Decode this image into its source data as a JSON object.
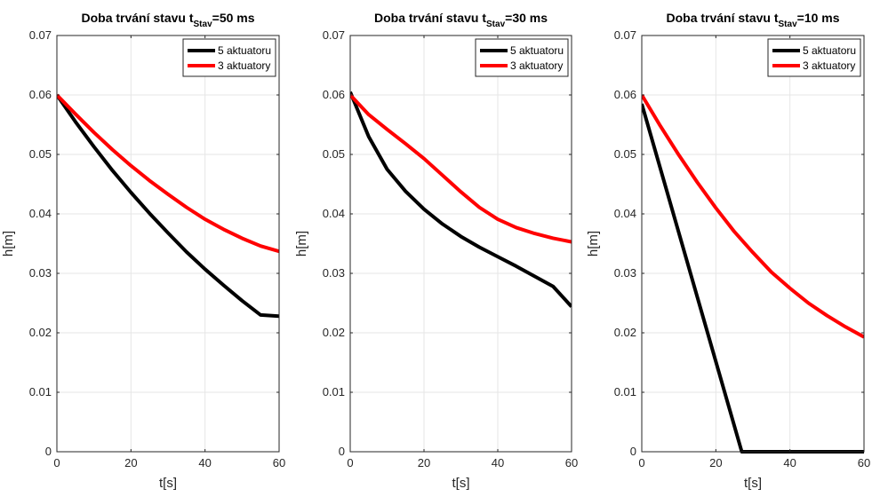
{
  "chart_data": [
    {
      "type": "line",
      "title": {
        "prefix": "Doba trvání stavu t",
        "subscript": "Stav",
        "suffix": "=50 ms"
      },
      "xlabel": "t[s]",
      "ylabel": "h[m]",
      "xlim": [
        0,
        60
      ],
      "ylim": [
        0,
        0.07
      ],
      "xticks": [
        "0",
        "20",
        "40",
        "60"
      ],
      "yticks": [
        "0",
        "0.01",
        "0.02",
        "0.03",
        "0.04",
        "0.05",
        "0.06",
        "0.07"
      ],
      "grid": true,
      "legend": "top-right",
      "series": [
        {
          "name": "5 aktuatoru",
          "color": "#000000",
          "x": [
            0,
            5,
            10,
            15,
            20,
            25,
            30,
            35,
            40,
            45,
            50,
            55,
            60
          ],
          "y": [
            0.06,
            0.0555,
            0.0513,
            0.0473,
            0.0436,
            0.0401,
            0.0368,
            0.0336,
            0.0307,
            0.028,
            0.0254,
            0.023,
            0.0228
          ]
        },
        {
          "name": "3 aktuatory",
          "color": "#ff0000",
          "x": [
            0,
            5,
            10,
            15,
            20,
            25,
            30,
            35,
            40,
            45,
            50,
            55,
            60
          ],
          "y": [
            0.06,
            0.0568,
            0.0537,
            0.0508,
            0.0481,
            0.0456,
            0.0433,
            0.0411,
            0.0391,
            0.0374,
            0.0359,
            0.0346,
            0.0337
          ]
        }
      ]
    },
    {
      "type": "line",
      "title": {
        "prefix": "Doba trvání stavu t",
        "subscript": "Stav",
        "suffix": "=30 ms"
      },
      "xlabel": "t[s]",
      "ylabel": "h[m]",
      "xlim": [
        0,
        60
      ],
      "ylim": [
        0,
        0.07
      ],
      "xticks": [
        "0",
        "20",
        "40",
        "60"
      ],
      "yticks": [
        "0",
        "0.01",
        "0.02",
        "0.03",
        "0.04",
        "0.05",
        "0.06",
        "0.07"
      ],
      "grid": true,
      "legend": "top-right",
      "series": [
        {
          "name": "5 aktuatoru",
          "color": "#000000",
          "x": [
            0,
            2,
            5,
            10,
            15,
            20,
            25,
            30,
            35,
            40,
            45,
            50,
            55,
            60
          ],
          "y": [
            0.0605,
            0.0575,
            0.053,
            0.0475,
            0.0438,
            0.0408,
            0.0383,
            0.0362,
            0.0344,
            0.0328,
            0.0312,
            0.0295,
            0.0278,
            0.0244
          ]
        },
        {
          "name": "3 aktuatory",
          "color": "#ff0000",
          "x": [
            0,
            5,
            10,
            15,
            20,
            25,
            30,
            35,
            40,
            45,
            50,
            55,
            60
          ],
          "y": [
            0.06,
            0.0567,
            0.0542,
            0.0518,
            0.0493,
            0.0465,
            0.0437,
            0.0411,
            0.0391,
            0.0377,
            0.0367,
            0.0359,
            0.0353
          ]
        }
      ]
    },
    {
      "type": "line",
      "title": {
        "prefix": "Doba trvání stavu t",
        "subscript": "Stav",
        "suffix": "=10 ms"
      },
      "xlabel": "t[s]",
      "ylabel": "h[m]",
      "xlim": [
        0,
        60
      ],
      "ylim": [
        0,
        0.07
      ],
      "xticks": [
        "0",
        "20",
        "40",
        "60"
      ],
      "yticks": [
        "0",
        "0.01",
        "0.02",
        "0.03",
        "0.04",
        "0.05",
        "0.06",
        "0.07"
      ],
      "grid": true,
      "legend": "top-right",
      "series": [
        {
          "name": "5 aktuatoru",
          "color": "#000000",
          "x": [
            0,
            27,
            60
          ],
          "y": [
            0.0585,
            0,
            0
          ]
        },
        {
          "name": "3 aktuatory",
          "color": "#ff0000",
          "x": [
            0,
            5,
            10,
            15,
            20,
            25,
            30,
            35,
            40,
            45,
            50,
            55,
            60
          ],
          "y": [
            0.06,
            0.0548,
            0.0499,
            0.0453,
            0.041,
            0.037,
            0.0335,
            0.0302,
            0.0275,
            0.025,
            0.0229,
            0.021,
            0.0193
          ]
        }
      ]
    }
  ]
}
